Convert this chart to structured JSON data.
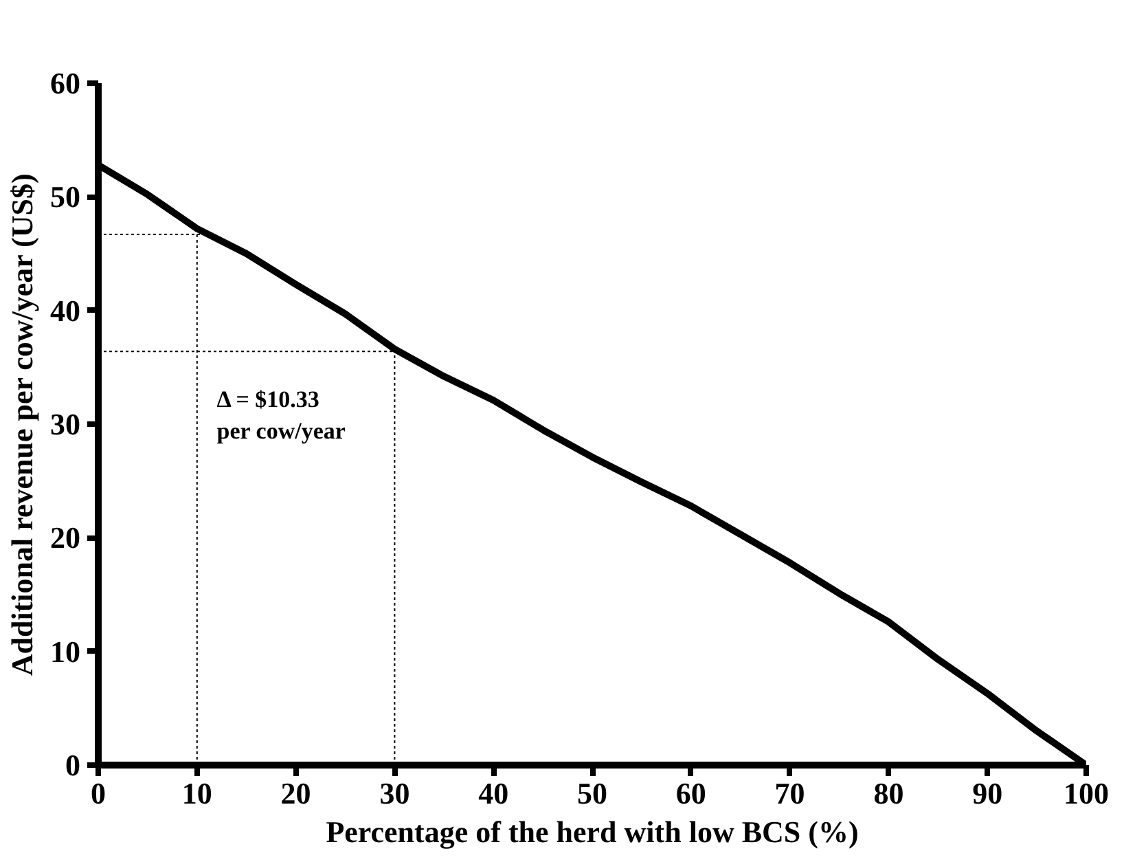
{
  "chart_data": {
    "type": "line",
    "xlabel": "Percentage of the herd with low BCS (%)",
    "ylabel": "Additional revenue per cow/year (US$)",
    "x": [
      0,
      5,
      10,
      15,
      20,
      25,
      30,
      35,
      40,
      45,
      50,
      55,
      60,
      65,
      70,
      75,
      80,
      85,
      90,
      95,
      100
    ],
    "series": [
      {
        "color": "#000000",
        "values": [
          52.8,
          50.2,
          47.2,
          45.0,
          42.3,
          39.7,
          36.6,
          34.2,
          32.1,
          29.5,
          27.1,
          24.9,
          22.8,
          20.3,
          17.8,
          15.1,
          12.6,
          9.3,
          6.3,
          3.0,
          0
        ]
      }
    ],
    "xlim": [
      0,
      100
    ],
    "ylim": [
      0,
      60
    ],
    "xticks": [
      0,
      10,
      20,
      30,
      40,
      50,
      60,
      70,
      80,
      90,
      100
    ],
    "yticks": [
      0,
      10,
      20,
      30,
      40,
      50,
      60
    ],
    "ref_lines": [
      {
        "axis": "x",
        "value": 10,
        "line_style": "dotted"
      },
      {
        "axis": "x",
        "value": 30,
        "line_style": "dotted"
      },
      {
        "axis": "y",
        "value": 46.7,
        "line_style": "dotted"
      },
      {
        "axis": "y",
        "value": 36.4,
        "line_style": "dotted"
      }
    ],
    "annotations": [
      "Δ = $10.33\nper cow/year"
    ],
    "grid": false
  }
}
